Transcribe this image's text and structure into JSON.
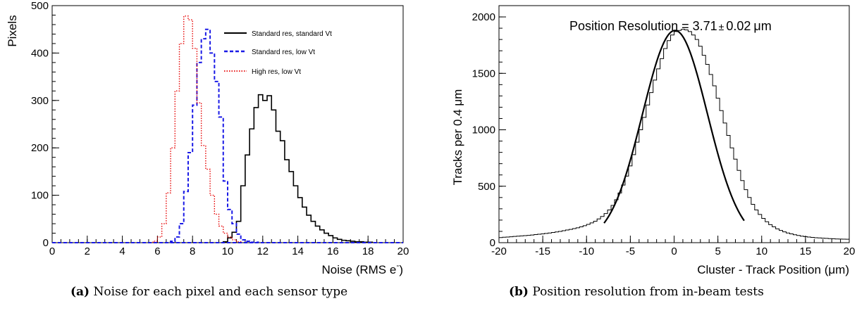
{
  "captions": [
    {
      "tag": "(a)",
      "text": "Noise for each pixel and each sensor type"
    },
    {
      "tag": "(b)",
      "text": "Position resolution from in-beam tests"
    }
  ],
  "chart_data": [
    {
      "type": "line",
      "xlabel": "Noise (RMS e",
      "xlabel_sup": "-",
      "xlabel_end": ")",
      "ylabel": "Pixels",
      "xlim": [
        0,
        20
      ],
      "ylim": [
        0,
        500
      ],
      "xticks": [
        0,
        2,
        4,
        6,
        8,
        10,
        12,
        14,
        16,
        18,
        20
      ],
      "yticks": [
        0,
        100,
        200,
        300,
        400,
        500
      ],
      "grid": false,
      "legend_position": "top-right",
      "bin_width": 0.25,
      "series": [
        {
          "name": "Standard res, standard Vt",
          "color": "#000000",
          "style": "solid",
          "x": [
            9.75,
            10.0,
            10.25,
            10.5,
            10.75,
            11.0,
            11.25,
            11.5,
            11.75,
            12.0,
            12.25,
            12.5,
            12.75,
            13.0,
            13.25,
            13.5,
            13.75,
            14.0,
            14.25,
            14.5,
            14.75,
            15.0,
            15.25,
            15.5,
            15.75,
            16.0,
            16.25,
            16.5,
            16.75,
            17.0,
            17.25,
            17.5,
            17.75,
            18.0
          ],
          "values": [
            2,
            10,
            22,
            45,
            120,
            185,
            240,
            285,
            312,
            300,
            310,
            280,
            235,
            215,
            175,
            150,
            120,
            95,
            75,
            58,
            45,
            35,
            27,
            20,
            15,
            10,
            7,
            5,
            4,
            3,
            2,
            2,
            1,
            1
          ]
        },
        {
          "name": "Standard res, low Vt",
          "color": "#1a1ae6",
          "style": "dashed",
          "x": [
            6.75,
            7.0,
            7.25,
            7.5,
            7.75,
            8.0,
            8.25,
            8.5,
            8.75,
            9.0,
            9.25,
            9.5,
            9.75,
            10.0,
            10.25,
            10.5,
            10.75,
            11.0,
            11.25,
            11.5
          ],
          "values": [
            3,
            12,
            40,
            108,
            190,
            290,
            380,
            430,
            450,
            400,
            340,
            265,
            130,
            70,
            40,
            18,
            6,
            3,
            1,
            1
          ]
        },
        {
          "name": "High res, low Vt",
          "color": "#e60000",
          "style": "dotted",
          "x": [
            5.75,
            6.0,
            6.25,
            6.5,
            6.75,
            7.0,
            7.25,
            7.5,
            7.75,
            8.0,
            8.25,
            8.5,
            8.75,
            9.0,
            9.25,
            9.5,
            9.75,
            10.0,
            10.25,
            10.5
          ],
          "values": [
            3,
            12,
            40,
            105,
            200,
            320,
            420,
            478,
            470,
            410,
            295,
            205,
            155,
            100,
            60,
            35,
            20,
            12,
            6,
            2
          ]
        }
      ]
    },
    {
      "type": "line",
      "xlabel": "Cluster - Track Position (",
      "xlabel_unit": "μm",
      "xlabel_end": ")",
      "ylabel": "Tracks per 0.4 ",
      "ylabel_unit": "μm",
      "xlim": [
        -20,
        20
      ],
      "ylim": [
        0,
        2100
      ],
      "xticks": [
        -20,
        -15,
        -10,
        -5,
        0,
        5,
        10,
        15,
        20
      ],
      "yticks": [
        0,
        500,
        1000,
        1500,
        2000
      ],
      "grid": false,
      "annotation": "Position Resolution = 3.71",
      "annotation_pm": "±",
      "annotation_err": "0.02",
      "annotation_unit": "μm",
      "bin_width": 0.4,
      "histogram_counts": [
        45,
        48,
        50,
        52,
        55,
        58,
        60,
        62,
        65,
        68,
        72,
        75,
        78,
        82,
        86,
        90,
        95,
        100,
        106,
        112,
        118,
        125,
        132,
        140,
        150,
        162,
        175,
        190,
        210,
        232,
        258,
        290,
        330,
        380,
        440,
        510,
        590,
        680,
        780,
        890,
        1000,
        1110,
        1220,
        1330,
        1440,
        1540,
        1630,
        1720,
        1790,
        1840,
        1870,
        1880,
        1890,
        1885,
        1870,
        1840,
        1800,
        1740,
        1660,
        1580,
        1490,
        1390,
        1280,
        1170,
        1060,
        950,
        840,
        740,
        640,
        550,
        470,
        400,
        340,
        290,
        250,
        215,
        185,
        160,
        140,
        122,
        108,
        96,
        86,
        78,
        70,
        64,
        58,
        54,
        50,
        47,
        44,
        42,
        40,
        38,
        36,
        34,
        33,
        32,
        31,
        30
      ],
      "fit": {
        "function": "gaussian",
        "amplitude": 1880,
        "mean": 0.1,
        "sigma": 3.71,
        "range": [
          -8,
          8
        ]
      }
    }
  ]
}
